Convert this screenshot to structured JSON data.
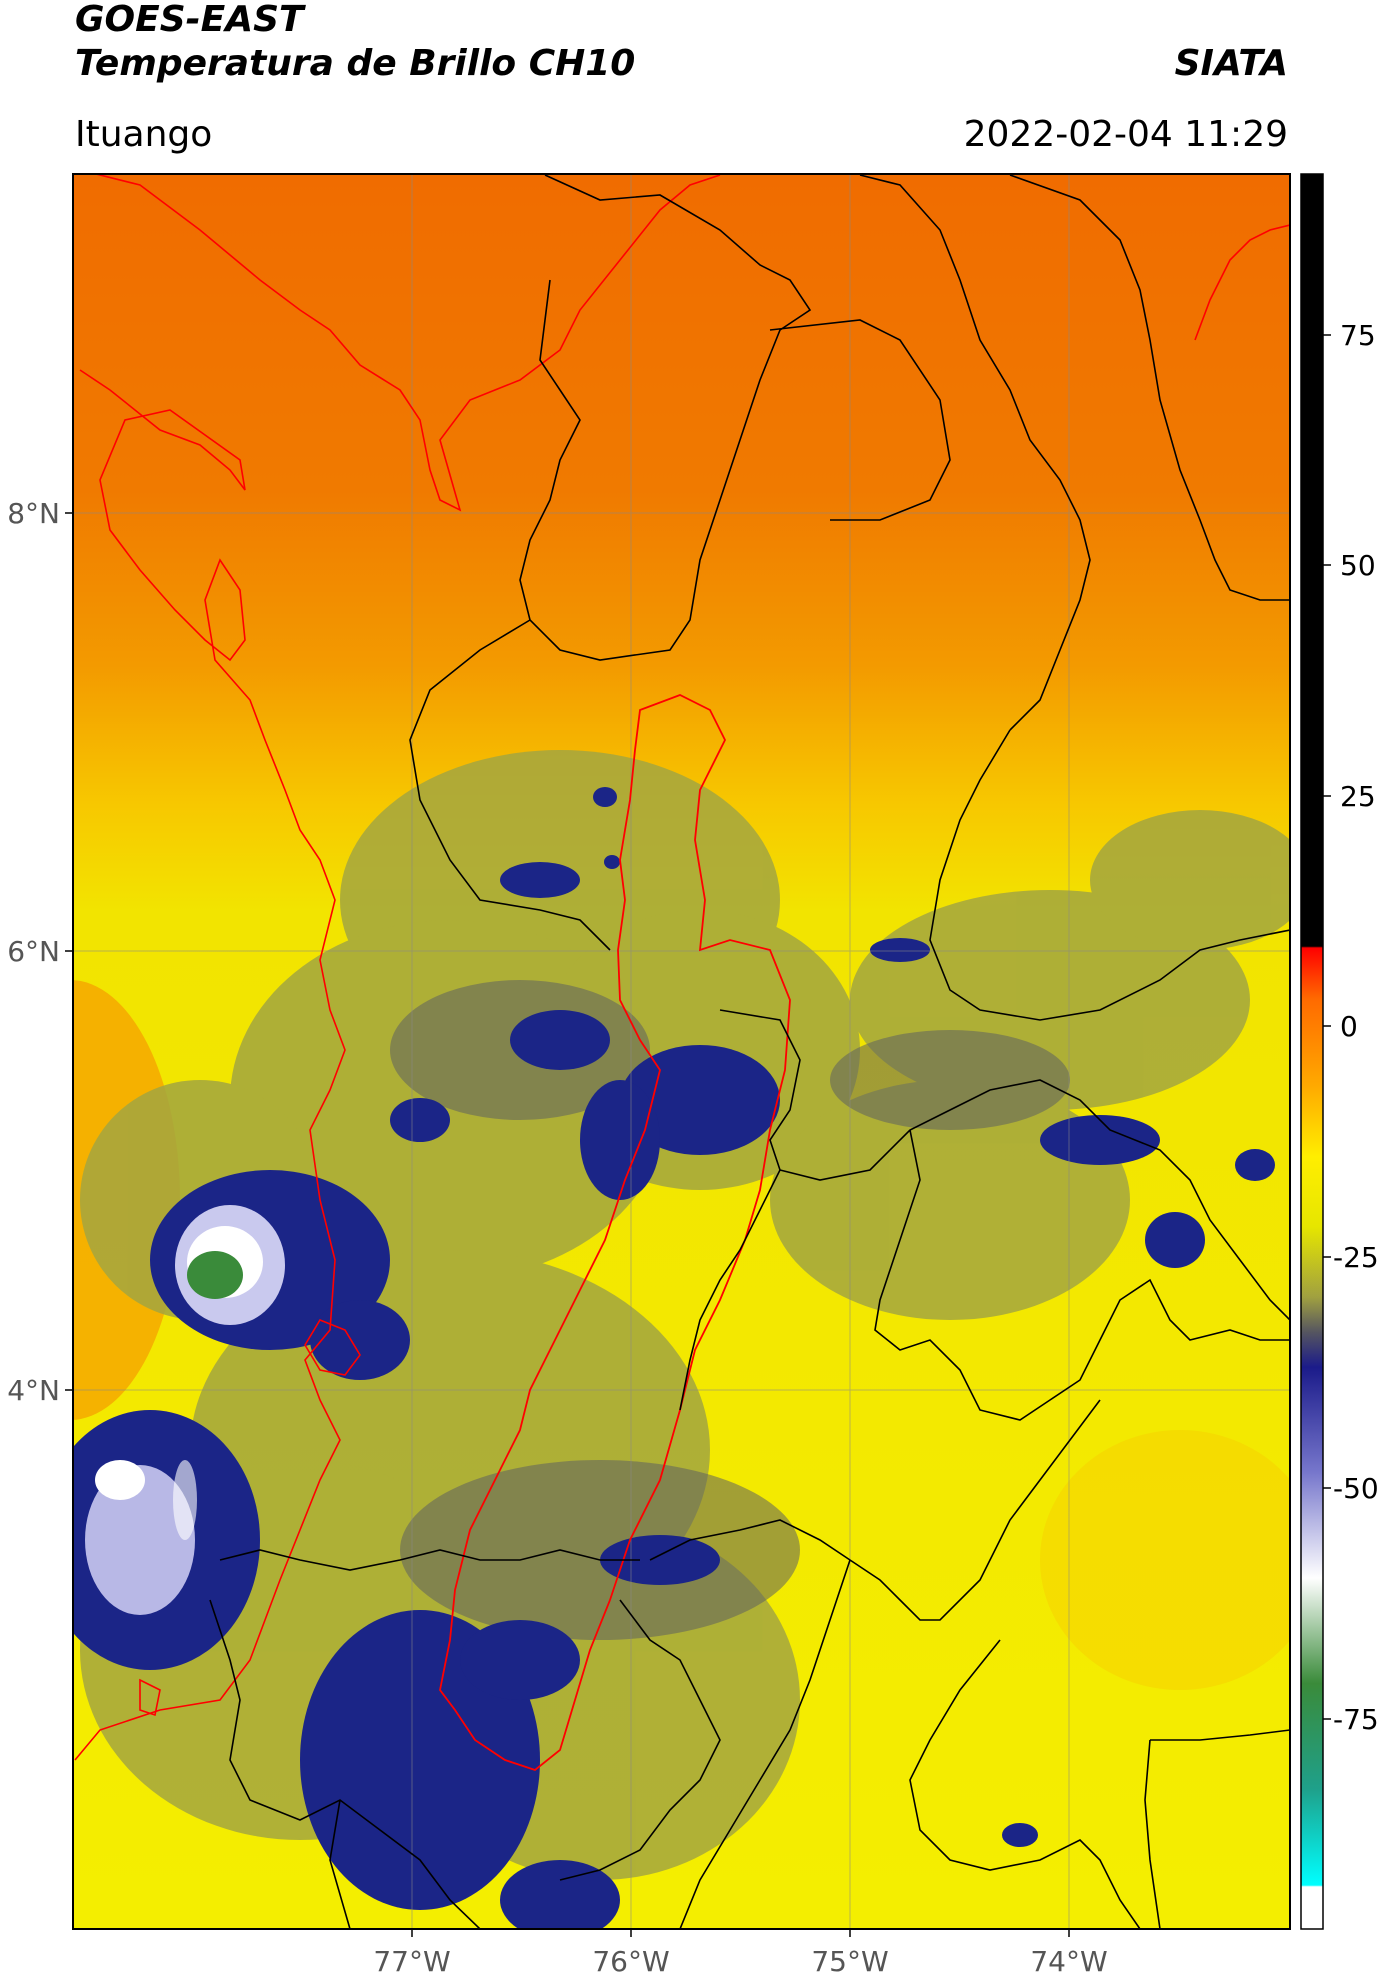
{
  "header": {
    "title_line1": "GOES-EAST",
    "title_line2": "Temperatura de Brillo CH10",
    "brand": "SIATA",
    "location": "Ituango",
    "datetime": "2022-02-04 11:29"
  },
  "map": {
    "lon_ticks": [
      {
        "label": "77°W"
      },
      {
        "label": "76°W"
      },
      {
        "label": "75°W"
      },
      {
        "label": "74°W"
      }
    ],
    "lat_ticks": [
      {
        "label": "8°N"
      },
      {
        "label": "6°N"
      },
      {
        "label": "4°N"
      }
    ],
    "colors": {
      "warm_orange": "#f07300",
      "yellow": "#f2ee00",
      "olive": "#a3a640",
      "navy": "#1b2587",
      "lavender": "#c9c9ee",
      "green": "#3a8b3a",
      "border_black": "#000000",
      "basin_red": "#ff0000"
    }
  },
  "colorbar": {
    "ticks": [
      {
        "label": "75",
        "value": 75
      },
      {
        "label": "50",
        "value": 50
      },
      {
        "label": "25",
        "value": 25
      },
      {
        "label": "0",
        "value": 0
      },
      {
        "label": "-25",
        "value": -25
      },
      {
        "label": "-50",
        "value": -50
      },
      {
        "label": "-75",
        "value": -75
      }
    ]
  }
}
